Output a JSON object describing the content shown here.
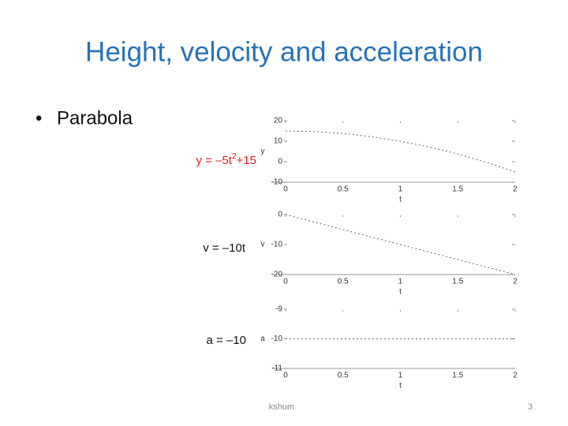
{
  "title": "Height, velocity and acceleration",
  "bullets": [
    "Parabola"
  ],
  "equations": [
    [
      "y = –5t",
      "2",
      "+15"
    ],
    [
      "v = –10t"
    ],
    [
      "a = –10"
    ]
  ],
  "footer": "kshum",
  "page_number": "3",
  "chart_data": [
    {
      "type": "line",
      "xlabel": "t",
      "ylabel": "y",
      "color": "#666666",
      "x": [
        0,
        0.25,
        0.5,
        0.75,
        1,
        1.25,
        1.5,
        1.75,
        2
      ],
      "values": [
        15,
        14.7,
        13.8,
        12.2,
        10,
        7.2,
        3.8,
        -0.3,
        -5
      ],
      "xlim": [
        0,
        2
      ],
      "ylim": [
        -10,
        20
      ],
      "xticks": [
        0,
        0.5,
        1,
        1.5,
        2
      ],
      "yticks": [
        -10,
        0,
        10,
        20
      ]
    },
    {
      "type": "line",
      "xlabel": "t",
      "ylabel": "v",
      "color": "#666666",
      "x": [
        0,
        2
      ],
      "values": [
        0,
        -20
      ],
      "xlim": [
        0,
        2
      ],
      "ylim": [
        -20,
        0
      ],
      "xticks": [
        0,
        0.5,
        1,
        1.5,
        2
      ],
      "yticks": [
        -20,
        -10,
        0
      ]
    },
    {
      "type": "line",
      "xlabel": "t",
      "ylabel": "a",
      "color": "#666666",
      "x": [
        0,
        2
      ],
      "values": [
        -10,
        -10
      ],
      "xlim": [
        0,
        2
      ],
      "ylim": [
        -11,
        -9
      ],
      "xticks": [
        0,
        0.5,
        1,
        1.5,
        2
      ],
      "yticks": [
        -11,
        -10,
        -9
      ]
    }
  ]
}
